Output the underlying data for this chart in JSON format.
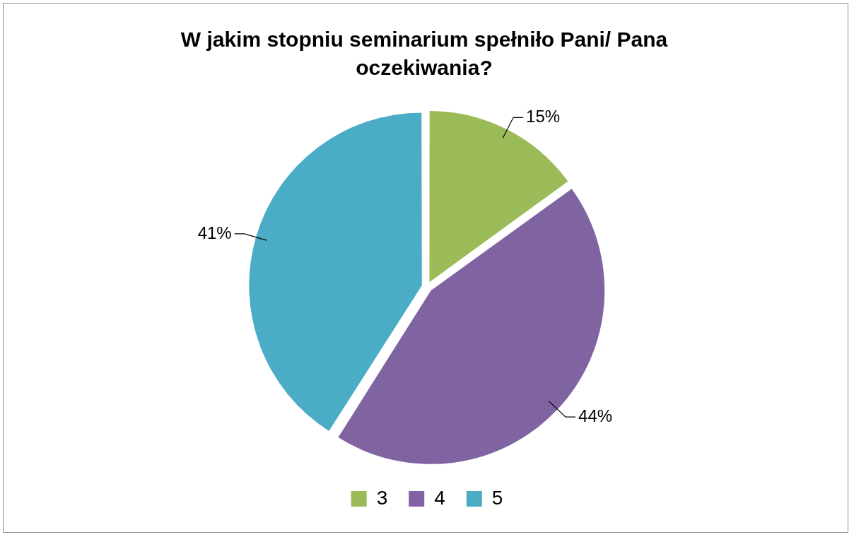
{
  "chart_data": {
    "type": "pie",
    "title": "W jakim stopniu seminarium spełniło Pani/ Pana oczekiwania?",
    "categories": [
      "3",
      "4",
      "5"
    ],
    "values": [
      15,
      44,
      41
    ],
    "colors": [
      "#9bbb59",
      "#8064a2",
      "#4bacc6"
    ],
    "value_labels": [
      "15%",
      "44%",
      "41%"
    ],
    "legend": "bottom"
  }
}
